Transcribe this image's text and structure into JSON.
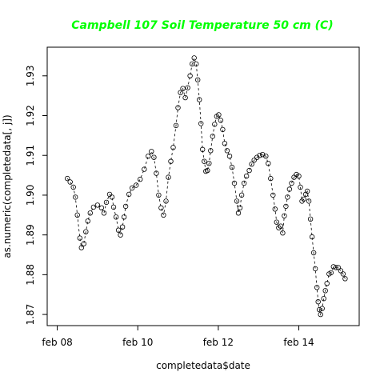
{
  "chart_data": {
    "type": "line",
    "title": "Campbell 107 Soil Temperature 50 cm (C)",
    "title_color": "#00ff00",
    "xlabel": "completedata$date",
    "ylabel": "as.numeric(completedata[, j])",
    "xlim": [
      -0.25,
      7.5
    ],
    "ylim": [
      1.8672,
      1.9372
    ],
    "x_ticks": [
      {
        "value": 0,
        "label": "feb 08"
      },
      {
        "value": 2,
        "label": "feb 10"
      },
      {
        "value": 4,
        "label": "feb 12"
      },
      {
        "value": 6,
        "label": "feb 14"
      }
    ],
    "y_ticks": [
      1.87,
      1.88,
      1.89,
      1.9,
      1.91,
      1.92,
      1.93
    ],
    "grid": false,
    "line_style": "dashed",
    "marker": "open-circle",
    "series": [
      {
        "points": [
          [
            0.25,
            1.9042
          ],
          [
            0.32,
            1.9033
          ],
          [
            0.4,
            1.902
          ],
          [
            0.45,
            1.8995
          ],
          [
            0.5,
            1.895
          ],
          [
            0.56,
            1.8892
          ],
          [
            0.6,
            1.8868
          ],
          [
            0.66,
            1.8878
          ],
          [
            0.71,
            1.8908
          ],
          [
            0.76,
            1.8935
          ],
          [
            0.82,
            1.8955
          ],
          [
            0.9,
            1.897
          ],
          [
            1.0,
            1.8975
          ],
          [
            1.1,
            1.8968
          ],
          [
            1.16,
            1.8955
          ],
          [
            1.22,
            1.8982
          ],
          [
            1.3,
            1.9002
          ],
          [
            1.36,
            1.8995
          ],
          [
            1.4,
            1.897
          ],
          [
            1.46,
            1.8945
          ],
          [
            1.52,
            1.8912
          ],
          [
            1.57,
            1.89
          ],
          [
            1.62,
            1.892
          ],
          [
            1.66,
            1.8945
          ],
          [
            1.7,
            1.8972
          ],
          [
            1.78,
            1.9002
          ],
          [
            1.86,
            1.9018
          ],
          [
            1.96,
            1.9025
          ],
          [
            2.06,
            1.904
          ],
          [
            2.16,
            1.9065
          ],
          [
            2.26,
            1.9098
          ],
          [
            2.34,
            1.911
          ],
          [
            2.4,
            1.9095
          ],
          [
            2.46,
            1.9055
          ],
          [
            2.52,
            1.9
          ],
          [
            2.58,
            1.8968
          ],
          [
            2.64,
            1.895
          ],
          [
            2.7,
            1.8985
          ],
          [
            2.76,
            1.9045
          ],
          [
            2.82,
            1.9085
          ],
          [
            2.88,
            1.912
          ],
          [
            2.95,
            1.9175
          ],
          [
            3.0,
            1.922
          ],
          [
            3.06,
            1.9258
          ],
          [
            3.12,
            1.9268
          ],
          [
            3.18,
            1.9245
          ],
          [
            3.24,
            1.927
          ],
          [
            3.3,
            1.93
          ],
          [
            3.35,
            1.933
          ],
          [
            3.4,
            1.9345
          ],
          [
            3.45,
            1.933
          ],
          [
            3.49,
            1.929
          ],
          [
            3.53,
            1.924
          ],
          [
            3.57,
            1.918
          ],
          [
            3.61,
            1.9115
          ],
          [
            3.65,
            1.9085
          ],
          [
            3.69,
            1.906
          ],
          [
            3.73,
            1.9062
          ],
          [
            3.77,
            1.908
          ],
          [
            3.81,
            1.9112
          ],
          [
            3.86,
            1.9148
          ],
          [
            3.91,
            1.9178
          ],
          [
            3.96,
            1.9198
          ],
          [
            4.01,
            1.9202
          ],
          [
            4.06,
            1.9188
          ],
          [
            4.11,
            1.9165
          ],
          [
            4.16,
            1.913
          ],
          [
            4.22,
            1.9112
          ],
          [
            4.28,
            1.9098
          ],
          [
            4.34,
            1.907
          ],
          [
            4.4,
            1.903
          ],
          [
            4.46,
            1.8985
          ],
          [
            4.5,
            1.8955
          ],
          [
            4.54,
            1.8968
          ],
          [
            4.58,
            1.9
          ],
          [
            4.64,
            1.903
          ],
          [
            4.7,
            1.9048
          ],
          [
            4.77,
            1.9062
          ],
          [
            4.83,
            1.9078
          ],
          [
            4.89,
            1.9088
          ],
          [
            4.96,
            1.9095
          ],
          [
            5.03,
            1.91
          ],
          [
            5.1,
            1.9102
          ],
          [
            5.18,
            1.9098
          ],
          [
            5.24,
            1.908
          ],
          [
            5.3,
            1.9042
          ],
          [
            5.36,
            1.9
          ],
          [
            5.41,
            1.8965
          ],
          [
            5.45,
            1.8932
          ],
          [
            5.5,
            1.8918
          ],
          [
            5.55,
            1.8922
          ],
          [
            5.6,
            1.8905
          ],
          [
            5.64,
            1.8948
          ],
          [
            5.68,
            1.8972
          ],
          [
            5.72,
            1.8995
          ],
          [
            5.77,
            1.9015
          ],
          [
            5.82,
            1.903
          ],
          [
            5.88,
            1.9045
          ],
          [
            5.94,
            1.9052
          ],
          [
            6.0,
            1.9048
          ],
          [
            6.04,
            1.902
          ],
          [
            6.08,
            1.8985
          ],
          [
            6.12,
            1.899
          ],
          [
            6.17,
            1.9002
          ],
          [
            6.21,
            1.901
          ],
          [
            6.25,
            1.8985
          ],
          [
            6.29,
            1.894
          ],
          [
            6.33,
            1.8895
          ],
          [
            6.37,
            1.8855
          ],
          [
            6.41,
            1.8815
          ],
          [
            6.45,
            1.8768
          ],
          [
            6.48,
            1.8732
          ],
          [
            6.51,
            1.8712
          ],
          [
            6.54,
            1.87
          ],
          [
            6.58,
            1.8715
          ],
          [
            6.62,
            1.874
          ],
          [
            6.66,
            1.876
          ],
          [
            6.7,
            1.8778
          ],
          [
            6.75,
            1.8802
          ],
          [
            6.8,
            1.8805
          ],
          [
            6.86,
            1.882
          ],
          [
            6.92,
            1.8818
          ],
          [
            6.98,
            1.8818
          ],
          [
            7.04,
            1.881
          ],
          [
            7.1,
            1.8802
          ],
          [
            7.15,
            1.879
          ]
        ]
      }
    ]
  }
}
